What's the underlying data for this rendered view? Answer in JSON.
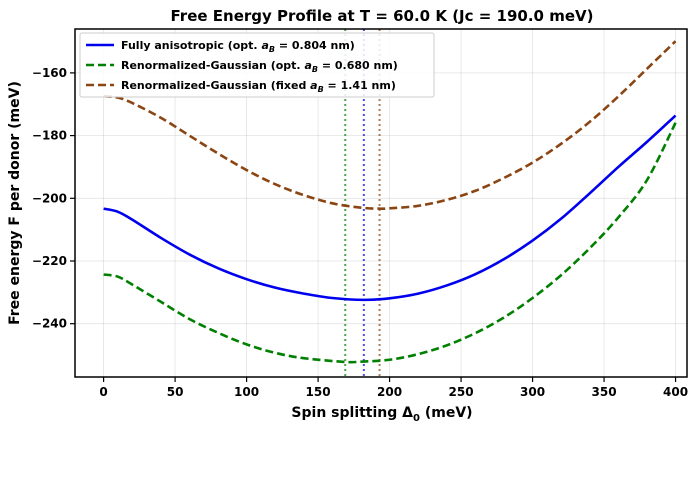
{
  "chart_data": {
    "type": "line",
    "title": "Free Energy Profile at T = 60.0 K (Jc = 190.0 meV)",
    "xlabel_main": "Spin splitting Δ",
    "xlabel_sub": "0",
    "xlabel_unit": " (meV)",
    "ylabel": "Free energy F per donor (meV)",
    "xlim": [
      -20,
      408
    ],
    "ylim": [
      -257,
      -146
    ],
    "xticks": [
      0,
      50,
      100,
      150,
      200,
      250,
      300,
      350,
      400
    ],
    "yticks": [
      -160,
      -180,
      -200,
      -220,
      -240
    ],
    "grid": true,
    "legend_position": "top-left",
    "series": [
      {
        "name_pre": "Fully anisotropic (opt. ",
        "name_var": "a",
        "name_sub": "B",
        "name_post": " = 0.804 nm)",
        "color": "#0000ee",
        "dash": "solid",
        "x": [
          0,
          10,
          20,
          40,
          60,
          80,
          100,
          120,
          140,
          160,
          182,
          200,
          220,
          240,
          260,
          280,
          300,
          320,
          340,
          360,
          380,
          400
        ],
        "y": [
          -203.3,
          -204.3,
          -206.8,
          -212.6,
          -217.9,
          -222.3,
          -225.8,
          -228.5,
          -230.4,
          -231.8,
          -232.4,
          -231.9,
          -230.4,
          -227.8,
          -224.2,
          -219.4,
          -213.5,
          -206.5,
          -198.4,
          -190.0,
          -182.0,
          -173.6
        ],
        "vline": 182
      },
      {
        "name_pre": "Renormalized-Gaussian (opt. ",
        "name_var": "a",
        "name_sub": "B",
        "name_post": " = 0.680 nm)",
        "color": "#008000",
        "dash": "dashed",
        "x": [
          0,
          10,
          20,
          40,
          60,
          80,
          100,
          120,
          140,
          169,
          180,
          200,
          220,
          240,
          260,
          280,
          300,
          320,
          340,
          360,
          380,
          400
        ],
        "y": [
          -224.3,
          -225.0,
          -227.5,
          -233.0,
          -238.5,
          -242.9,
          -246.6,
          -249.3,
          -251.0,
          -252.2,
          -252.1,
          -251.5,
          -249.7,
          -246.9,
          -243.0,
          -238.0,
          -231.8,
          -224.5,
          -215.9,
          -206.1,
          -194.2,
          -175.9
        ],
        "vline": 169
      },
      {
        "name_pre": "Renormalized-Gaussian (fixed ",
        "name_var": "a",
        "name_sub": "B",
        "name_post": " = 1.41 nm)",
        "color": "#8b4513",
        "dash": "dashed",
        "x": [
          0,
          10,
          20,
          40,
          60,
          80,
          100,
          120,
          140,
          160,
          180,
          193,
          200,
          220,
          240,
          260,
          280,
          300,
          320,
          340,
          360,
          380,
          400
        ],
        "y": [
          -167.4,
          -167.9,
          -169.6,
          -174.3,
          -180.0,
          -185.7,
          -191.0,
          -195.5,
          -199.0,
          -201.6,
          -203.0,
          -203.3,
          -203.2,
          -202.4,
          -200.5,
          -197.6,
          -193.5,
          -188.6,
          -182.6,
          -175.6,
          -167.5,
          -158.7,
          -149.9
        ],
        "vline": 193
      }
    ]
  }
}
